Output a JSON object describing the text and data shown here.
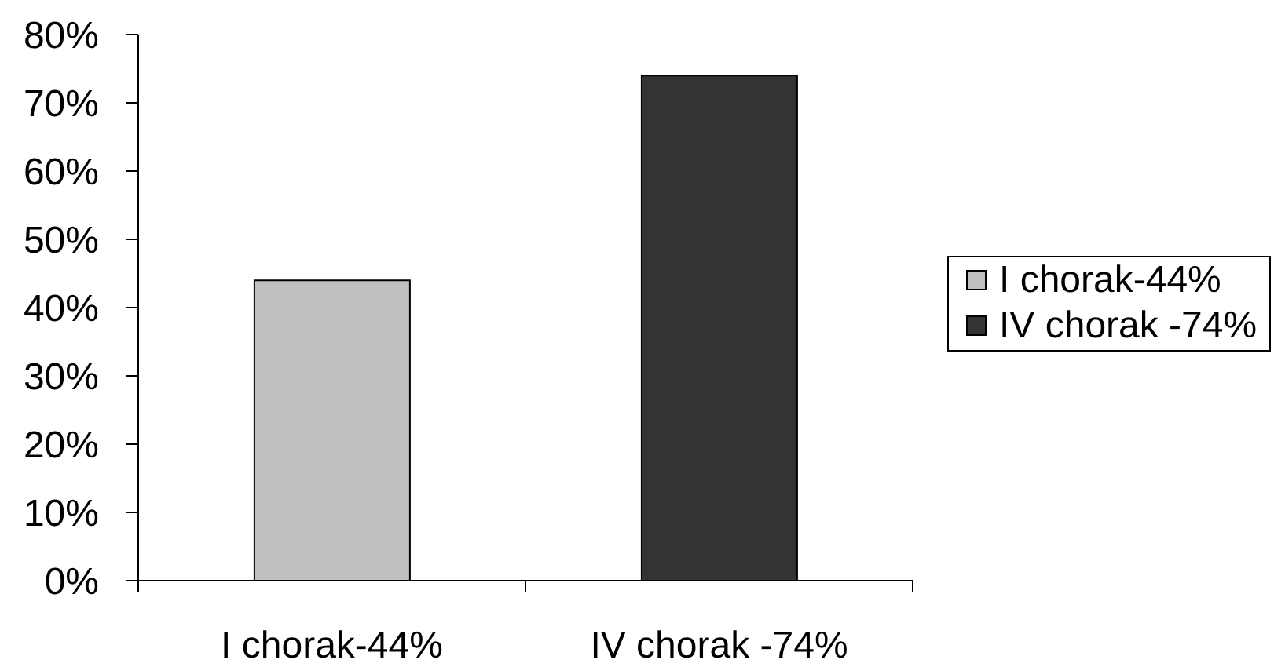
{
  "chart_data": {
    "type": "bar",
    "categories": [
      "I chorak-44%",
      "IV chorak -74%"
    ],
    "series": [
      {
        "name": "I chorak-44%",
        "color": "#c0c0c0",
        "values": [
          44,
          null
        ]
      },
      {
        "name": "IV chorak -74%",
        "color": "#333333",
        "values": [
          null,
          74
        ]
      }
    ],
    "ylim": [
      0,
      80
    ],
    "yticks": [
      {
        "value": 0,
        "label": "0%"
      },
      {
        "value": 10,
        "label": "10%"
      },
      {
        "value": 20,
        "label": "20%"
      },
      {
        "value": 30,
        "label": "30%"
      },
      {
        "value": 40,
        "label": "40%"
      },
      {
        "value": 50,
        "label": "50%"
      },
      {
        "value": 60,
        "label": "60%"
      },
      {
        "value": 70,
        "label": "70%"
      },
      {
        "value": 80,
        "label": "80%"
      }
    ],
    "legend": "right"
  }
}
